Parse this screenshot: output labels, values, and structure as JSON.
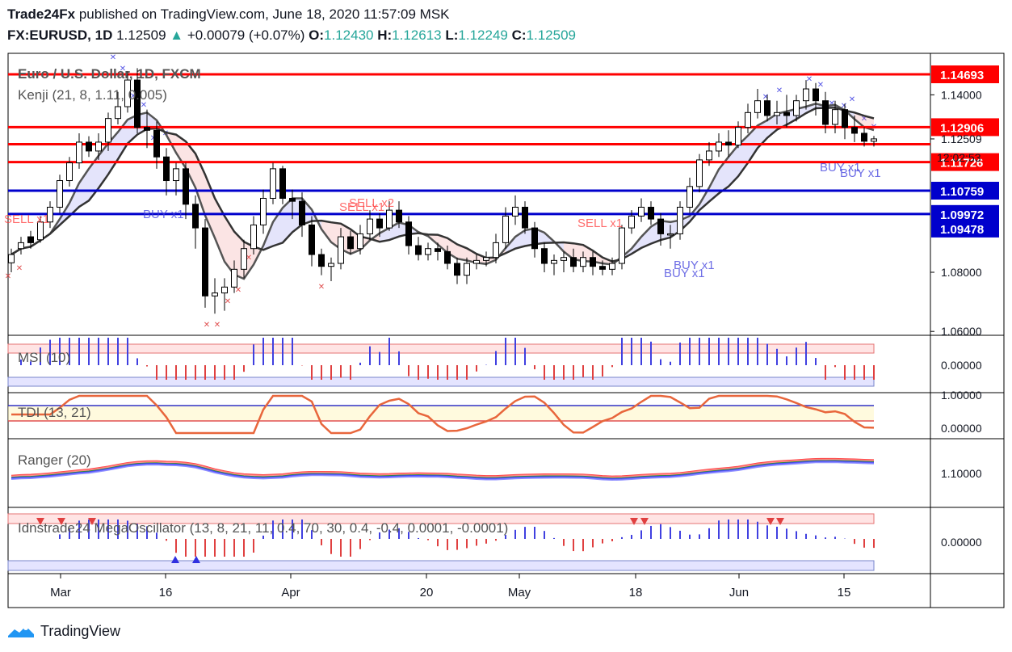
{
  "header": {
    "line1_brand": "Trade24Fx",
    "line1_rest": " published on TradingView.com, June 18, 2020 11:57:09 MSK",
    "symbol": "FX:EURUSD, 1D",
    "last": "1.12509",
    "change": "+0.00079 (+0.07%)",
    "o_label": "O:",
    "o_value": "1.12430",
    "h_label": "H:",
    "h_value": "1.12613",
    "l_label": "L:",
    "l_value": "1.12249",
    "c_label": "C:",
    "c_value": "1.12509"
  },
  "chart_data": {
    "type": "candlestick",
    "title": "Euro / U.S. Dollar, 1D, FXCM",
    "indicator": "Kenji (21, 8, 1.11, 0.005)",
    "x_labels": [
      "Mar",
      "16",
      "Apr",
      "20",
      "May",
      "18",
      "Jun",
      "15"
    ],
    "y_ticks": [
      "1.14000",
      "1.12509",
      "1.08000",
      "1.06000"
    ],
    "time_label": "12:02:53",
    "levels": [
      {
        "value": 1.14693,
        "label": "1.14693",
        "color": "#ff0000"
      },
      {
        "value": 1.12906,
        "label": "1.12906",
        "color": "#ff0000"
      },
      {
        "value": 1.1233,
        "label": "",
        "color": "#ff0000"
      },
      {
        "value": 1.11726,
        "label": "1.11726",
        "color": "#ff0000"
      },
      {
        "value": 1.10759,
        "label": "1.10759",
        "color": "#0000cc"
      },
      {
        "value": 1.09972,
        "label": "1.09972",
        "color": "#0000cc"
      }
    ],
    "extra_price_label": "1.09478",
    "signals": [
      "SELL x1",
      "BUY x1",
      "SELL x2",
      "SELL x1",
      "SELL x1",
      "BUY x1",
      "BUY x1",
      "BUY x1",
      "BUY x1"
    ],
    "candles": [
      [
        1.0832,
        1.086,
        1.08,
        1.088
      ],
      [
        1.088,
        1.09,
        1.086,
        1.092
      ],
      [
        1.092,
        1.09,
        1.088,
        1.094
      ],
      [
        1.091,
        1.097,
        1.09,
        1.099
      ],
      [
        1.097,
        1.102,
        1.095,
        1.104
      ],
      [
        1.102,
        1.111,
        1.1,
        1.113
      ],
      [
        1.111,
        1.117,
        1.109,
        1.119
      ],
      [
        1.117,
        1.124,
        1.115,
        1.127
      ],
      [
        1.124,
        1.121,
        1.119,
        1.126
      ],
      [
        1.121,
        1.124,
        1.118,
        1.127
      ],
      [
        1.124,
        1.132,
        1.121,
        1.134
      ],
      [
        1.132,
        1.136,
        1.13,
        1.141
      ],
      [
        1.136,
        1.145,
        1.134,
        1.148
      ],
      [
        1.145,
        1.129,
        1.127,
        1.149
      ],
      [
        1.129,
        1.128,
        1.122,
        1.135
      ],
      [
        1.128,
        1.119,
        1.115,
        1.131
      ],
      [
        1.119,
        1.111,
        1.106,
        1.122
      ],
      [
        1.111,
        1.115,
        1.106,
        1.117
      ],
      [
        1.115,
        1.103,
        1.098,
        1.117
      ],
      [
        1.103,
        1.095,
        1.088,
        1.106
      ],
      [
        1.095,
        1.072,
        1.068,
        1.098
      ],
      [
        1.072,
        1.073,
        1.066,
        1.078
      ],
      [
        1.073,
        1.075,
        1.067,
        1.078
      ],
      [
        1.075,
        1.081,
        1.073,
        1.084
      ],
      [
        1.081,
        1.088,
        1.078,
        1.091
      ],
      [
        1.088,
        1.096,
        1.086,
        1.099
      ],
      [
        1.096,
        1.105,
        1.093,
        1.108
      ],
      [
        1.105,
        1.115,
        1.103,
        1.117
      ],
      [
        1.115,
        1.105,
        1.103,
        1.116
      ],
      [
        1.105,
        1.104,
        1.098,
        1.108
      ],
      [
        1.104,
        1.096,
        1.092,
        1.107
      ],
      [
        1.096,
        1.086,
        1.082,
        1.099
      ],
      [
        1.086,
        1.082,
        1.079,
        1.088
      ],
      [
        1.082,
        1.083,
        1.077,
        1.085
      ],
      [
        1.083,
        1.092,
        1.081,
        1.095
      ],
      [
        1.092,
        1.088,
        1.086,
        1.094
      ],
      [
        1.088,
        1.093,
        1.086,
        1.096
      ],
      [
        1.093,
        1.098,
        1.091,
        1.101
      ],
      [
        1.098,
        1.095,
        1.092,
        1.1
      ],
      [
        1.095,
        1.101,
        1.094,
        1.104
      ],
      [
        1.101,
        1.097,
        1.095,
        1.104
      ],
      [
        1.097,
        1.089,
        1.086,
        1.099
      ],
      [
        1.089,
        1.086,
        1.084,
        1.092
      ],
      [
        1.086,
        1.088,
        1.084,
        1.09
      ],
      [
        1.088,
        1.087,
        1.084,
        1.09
      ],
      [
        1.087,
        1.083,
        1.081,
        1.089
      ],
      [
        1.083,
        1.079,
        1.076,
        1.085
      ],
      [
        1.079,
        1.083,
        1.076,
        1.085
      ],
      [
        1.083,
        1.084,
        1.081,
        1.086
      ],
      [
        1.084,
        1.085,
        1.082,
        1.087
      ],
      [
        1.085,
        1.09,
        1.083,
        1.093
      ],
      [
        1.09,
        1.099,
        1.088,
        1.102
      ],
      [
        1.099,
        1.102,
        1.096,
        1.106
      ],
      [
        1.102,
        1.095,
        1.093,
        1.104
      ],
      [
        1.095,
        1.088,
        1.085,
        1.097
      ],
      [
        1.088,
        1.083,
        1.08,
        1.09
      ],
      [
        1.083,
        1.084,
        1.079,
        1.086
      ],
      [
        1.084,
        1.085,
        1.08,
        1.087
      ],
      [
        1.085,
        1.082,
        1.08,
        1.088
      ],
      [
        1.082,
        1.085,
        1.08,
        1.087
      ],
      [
        1.085,
        1.082,
        1.079,
        1.087
      ],
      [
        1.082,
        1.081,
        1.079,
        1.084
      ],
      [
        1.081,
        1.083,
        1.079,
        1.085
      ],
      [
        1.083,
        1.095,
        1.081,
        1.096
      ],
      [
        1.095,
        1.099,
        1.093,
        1.101
      ],
      [
        1.099,
        1.102,
        1.097,
        1.105
      ],
      [
        1.102,
        1.098,
        1.096,
        1.104
      ],
      [
        1.098,
        1.093,
        1.089,
        1.1
      ],
      [
        1.093,
        1.093,
        1.088,
        1.096
      ],
      [
        1.093,
        1.102,
        1.091,
        1.104
      ],
      [
        1.102,
        1.109,
        1.1,
        1.112
      ],
      [
        1.109,
        1.118,
        1.107,
        1.12
      ],
      [
        1.118,
        1.121,
        1.116,
        1.124
      ],
      [
        1.121,
        1.124,
        1.119,
        1.127
      ],
      [
        1.124,
        1.123,
        1.119,
        1.128
      ],
      [
        1.123,
        1.129,
        1.122,
        1.131
      ],
      [
        1.129,
        1.134,
        1.127,
        1.137
      ],
      [
        1.134,
        1.138,
        1.132,
        1.142
      ],
      [
        1.138,
        1.133,
        1.131,
        1.14
      ],
      [
        1.133,
        1.134,
        1.13,
        1.138
      ],
      [
        1.134,
        1.133,
        1.129,
        1.14
      ],
      [
        1.133,
        1.138,
        1.131,
        1.14
      ],
      [
        1.138,
        1.142,
        1.135,
        1.145
      ],
      [
        1.142,
        1.138,
        1.133,
        1.144
      ],
      [
        1.138,
        1.13,
        1.127,
        1.141
      ],
      [
        1.13,
        1.135,
        1.127,
        1.138
      ],
      [
        1.135,
        1.129,
        1.125,
        1.137
      ],
      [
        1.129,
        1.127,
        1.124,
        1.133
      ],
      [
        1.127,
        1.1243,
        1.1225,
        1.129
      ],
      [
        1.1243,
        1.1251,
        1.1225,
        1.1261
      ]
    ],
    "panels": [
      {
        "name": "MSI (10)",
        "ticks": [
          "0.00000"
        ]
      },
      {
        "name": "TDI (13, 21)",
        "ticks": [
          "1.00000",
          "0.00000"
        ]
      },
      {
        "name": "Ranger (20)",
        "ticks": [
          "1.10000"
        ]
      },
      {
        "name": "Idnstrade24 MegaOscillator (13, 8, 21, 11, 0.4, 70, 30, 0.4, -0.4, 0.0001, -0.0001)",
        "ticks": [
          "0.00000"
        ]
      }
    ]
  },
  "colors": {
    "up": "#ffffff",
    "down": "#000000",
    "red": "#ff0000",
    "blue": "#0000cc",
    "accent": "#26a69a"
  },
  "footer": {
    "brand": "TradingView"
  }
}
